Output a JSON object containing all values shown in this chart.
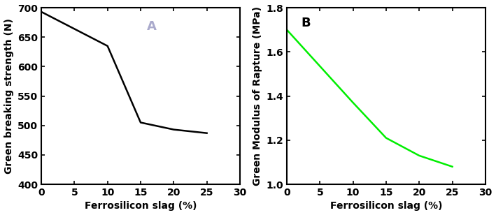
{
  "A_x": [
    0,
    10,
    15,
    20,
    25
  ],
  "A_y": [
    693,
    635,
    505,
    493,
    487
  ],
  "A_ylabel": "Green breaking strength (N)",
  "A_xlabel": "Ferrosilicon slag (%)",
  "A_ylim": [
    400,
    700
  ],
  "A_yticks": [
    400,
    450,
    500,
    550,
    600,
    650,
    700
  ],
  "A_xlim": [
    0,
    30
  ],
  "A_xticks": [
    0,
    5,
    10,
    15,
    20,
    25,
    30
  ],
  "A_label": "A",
  "A_color": "#000000",
  "B_x": [
    0,
    10,
    15,
    20,
    25
  ],
  "B_y": [
    1.7,
    1.37,
    1.21,
    1.13,
    1.08
  ],
  "B_ylabel": "Green Modulus of Rapture (MPa)",
  "B_xlabel": "Ferrosilicon slag (%)",
  "B_ylim": [
    1.0,
    1.8
  ],
  "B_yticks": [
    1.0,
    1.2,
    1.4,
    1.6,
    1.8
  ],
  "B_xlim": [
    0,
    30
  ],
  "B_xticks": [
    0,
    5,
    10,
    15,
    20,
    25,
    30
  ],
  "B_label": "B",
  "B_color": "#00ee00",
  "linewidth": 1.8,
  "tick_fontsize": 10,
  "label_fontsize": 10,
  "panel_label_fontsize": 13,
  "A_label_color": "#aaaacc",
  "B_label_color": "#000000"
}
